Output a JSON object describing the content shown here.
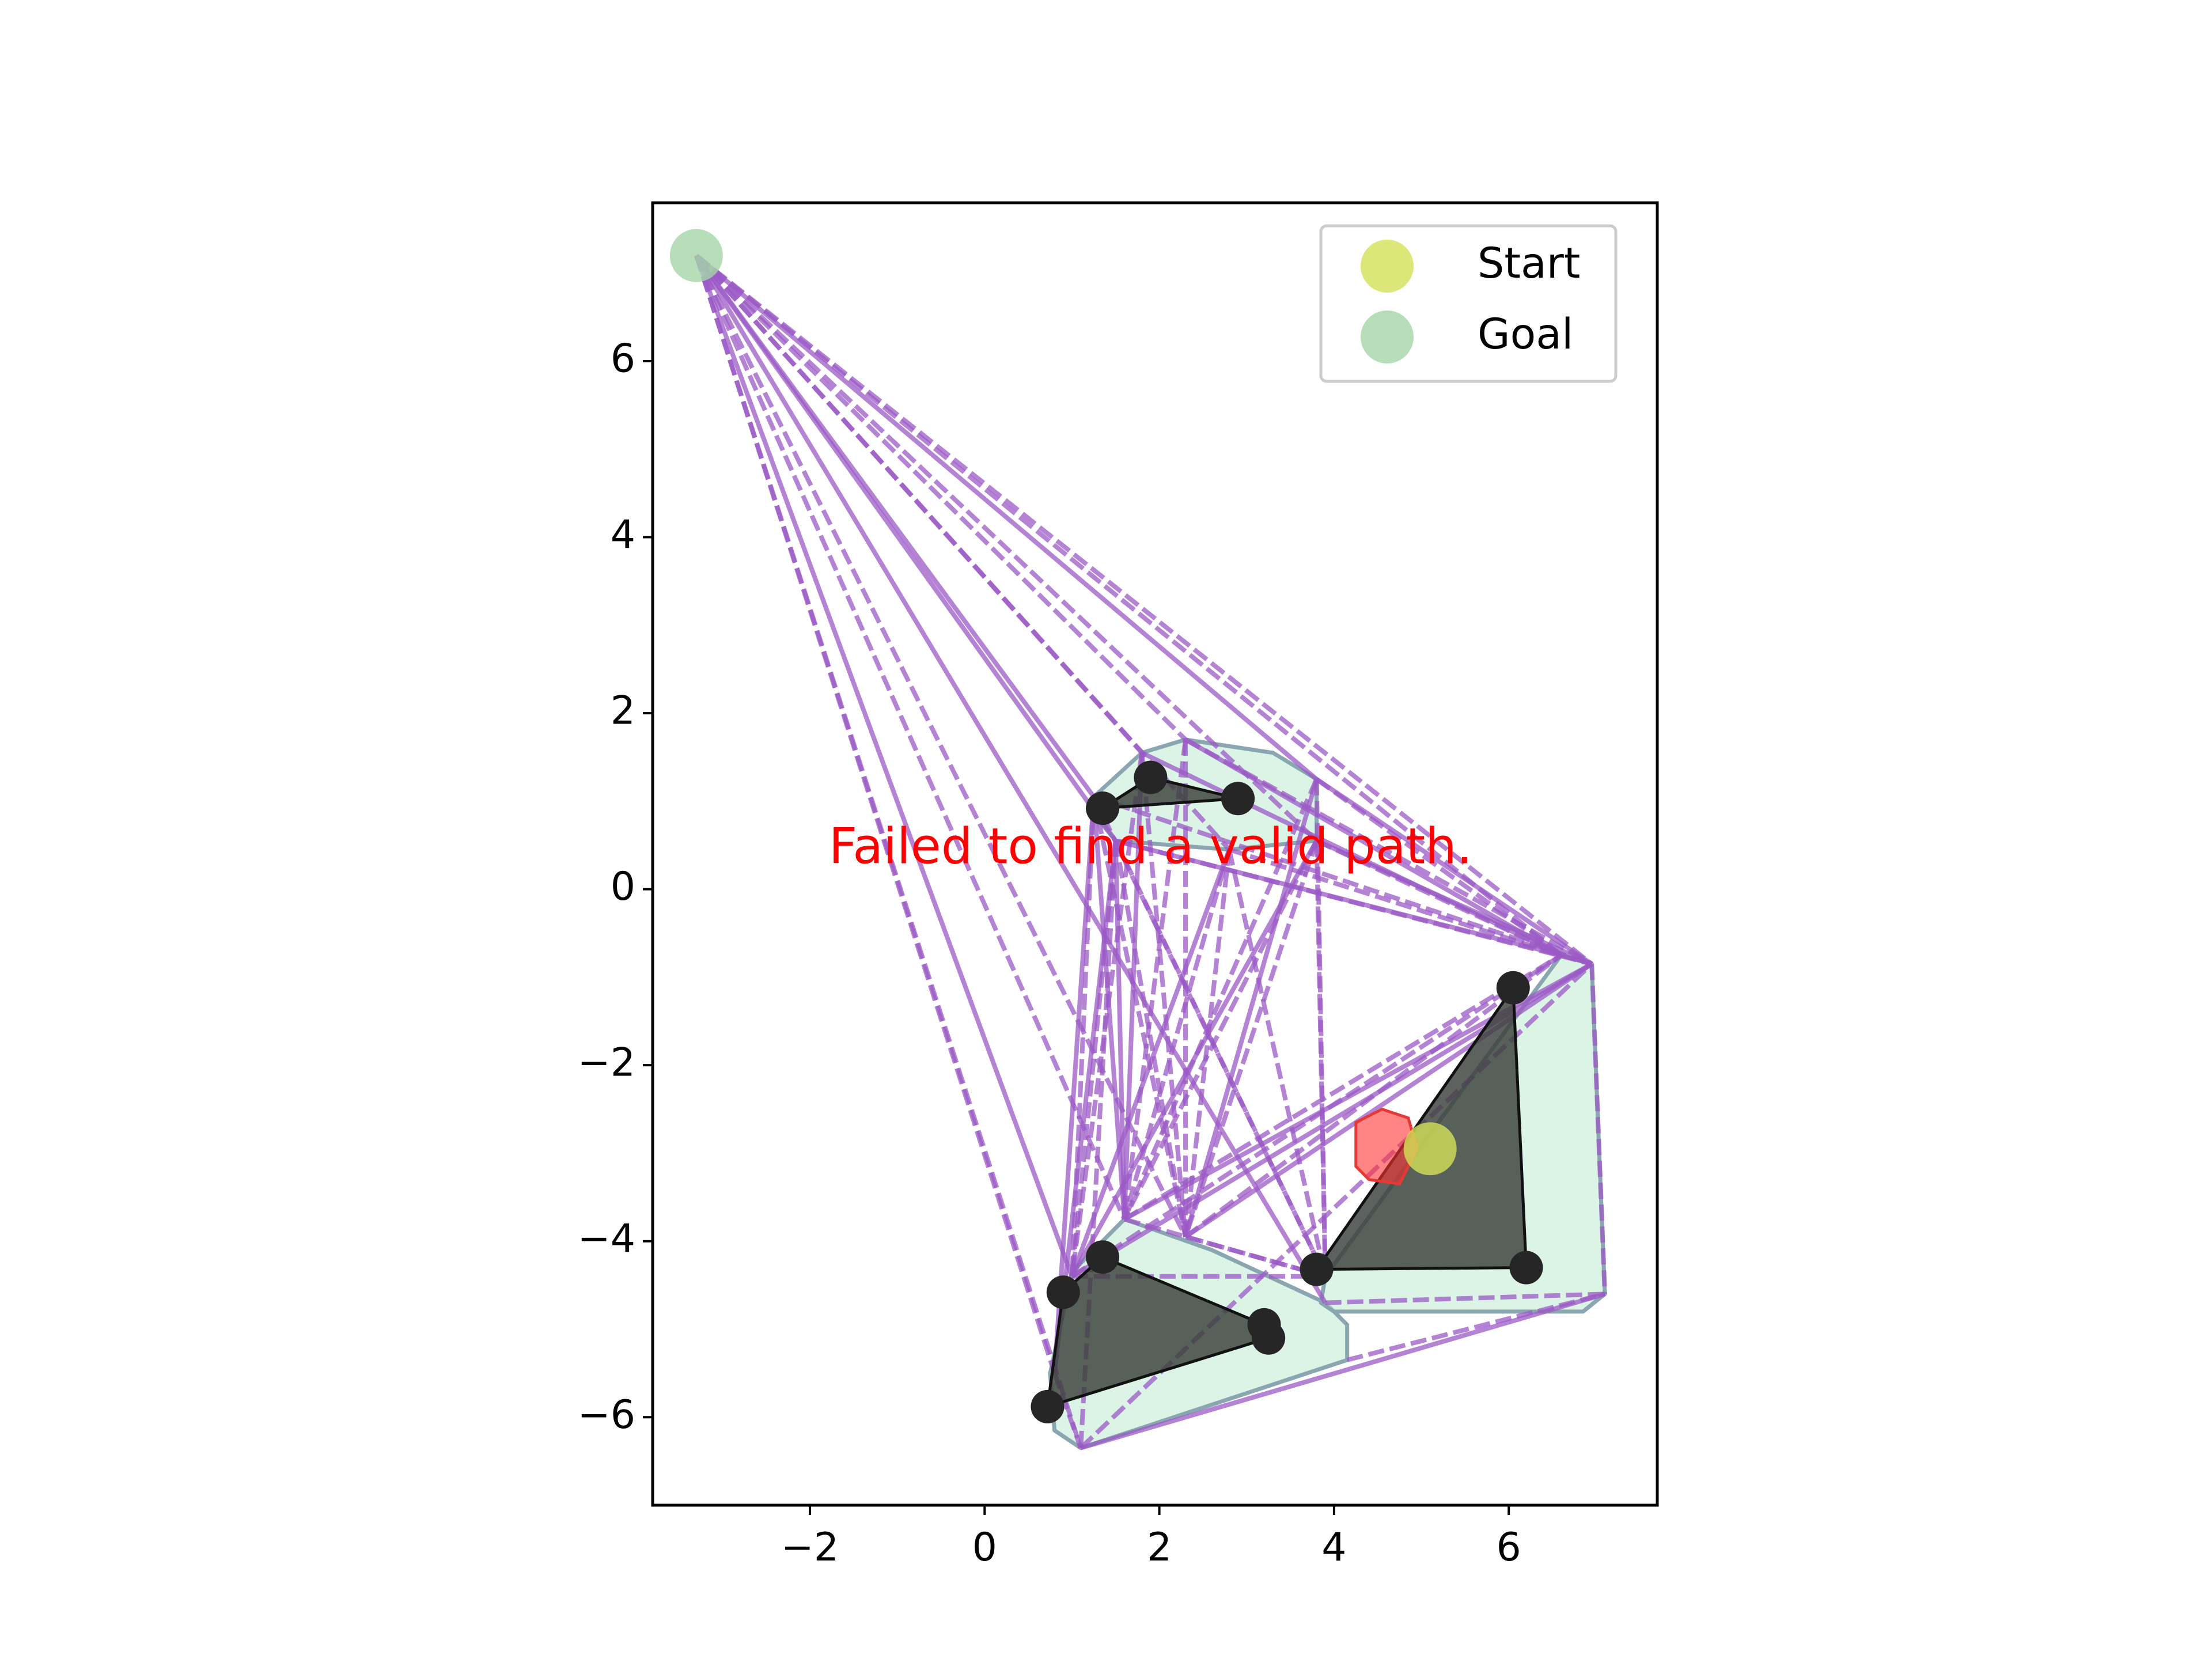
{
  "chart_data": {
    "type": "scatter",
    "title": "",
    "xlabel": "",
    "ylabel": "",
    "xlim": [
      -3.8,
      7.7
    ],
    "ylim": [
      -7.0,
      7.8
    ],
    "aspect": "equal",
    "grid": false,
    "x_ticks": [
      -2,
      0,
      2,
      4,
      6
    ],
    "x_tick_labels": [
      "−2",
      "0",
      "2",
      "4",
      "6"
    ],
    "y_ticks": [
      -6,
      -4,
      -2,
      0,
      2,
      4,
      6
    ],
    "y_tick_labels": [
      "−6",
      "−4",
      "−2",
      "0",
      "2",
      "4",
      "6"
    ],
    "legend": {
      "placement": "top-right",
      "entries": [
        {
          "label": "Start",
          "color": "#d4e157"
        },
        {
          "label": "Goal",
          "color": "#a5d6a7"
        }
      ]
    },
    "annotation": {
      "text": "Failed to find a valid path.",
      "x": 1.9,
      "y": 0.45,
      "color": "#ff0000"
    },
    "start": {
      "x": 5.1,
      "y": -2.95,
      "color": "#d4e157"
    },
    "goal": {
      "x": -3.3,
      "y": 7.2,
      "color": "#a5d6a7"
    },
    "robot": {
      "color": "#ff3333",
      "vertices": [
        [
          4.25,
          -2.65
        ],
        [
          4.55,
          -2.5
        ],
        [
          4.85,
          -2.6
        ],
        [
          4.95,
          -2.95
        ],
        [
          4.75,
          -3.35
        ],
        [
          4.4,
          -3.3
        ],
        [
          4.25,
          -3.15
        ]
      ]
    },
    "obstacles": [
      {
        "vertices": [
          [
            1.35,
            0.92
          ],
          [
            1.9,
            1.27
          ],
          [
            2.9,
            1.03
          ]
        ]
      },
      {
        "vertices": [
          [
            0.9,
            -4.58
          ],
          [
            1.35,
            -4.18
          ],
          [
            3.2,
            -4.95
          ],
          [
            3.25,
            -5.1
          ],
          [
            0.72,
            -5.88
          ]
        ]
      },
      {
        "vertices": [
          [
            3.8,
            -4.32
          ],
          [
            6.05,
            -1.12
          ],
          [
            6.2,
            -4.3
          ]
        ]
      }
    ],
    "inflated_regions": [
      {
        "vertices": [
          [
            1.25,
            1.05
          ],
          [
            1.8,
            1.55
          ],
          [
            2.3,
            1.7
          ],
          [
            3.3,
            1.55
          ],
          [
            3.8,
            1.25
          ],
          [
            3.8,
            0.55
          ],
          [
            2.8,
            0.45
          ],
          [
            1.5,
            0.55
          ],
          [
            1.25,
            0.85
          ]
        ]
      },
      {
        "vertices": [
          [
            1.6,
            -3.75
          ],
          [
            2.6,
            -4.1
          ],
          [
            3.9,
            -4.7
          ],
          [
            4.15,
            -4.95
          ],
          [
            4.15,
            -5.35
          ],
          [
            1.1,
            -6.35
          ],
          [
            0.8,
            -6.15
          ],
          [
            0.75,
            -5.5
          ],
          [
            1.0,
            -4.35
          ]
        ]
      },
      {
        "vertices": [
          [
            6.6,
            -0.75
          ],
          [
            6.95,
            -0.85
          ],
          [
            7.1,
            -4.6
          ],
          [
            6.85,
            -4.8
          ],
          [
            4.0,
            -4.8
          ],
          [
            3.85,
            -4.7
          ],
          [
            3.9,
            -4.4
          ]
        ]
      }
    ],
    "vertex_nodes": [
      {
        "x": 1.35,
        "y": 0.92
      },
      {
        "x": 1.9,
        "y": 1.27
      },
      {
        "x": 2.9,
        "y": 1.03
      },
      {
        "x": 0.9,
        "y": -4.58
      },
      {
        "x": 1.35,
        "y": -4.18
      },
      {
        "x": 3.2,
        "y": -4.95
      },
      {
        "x": 3.25,
        "y": -5.1
      },
      {
        "x": 0.72,
        "y": -5.88
      },
      {
        "x": 3.8,
        "y": -4.32
      },
      {
        "x": 6.05,
        "y": -1.12
      },
      {
        "x": 6.2,
        "y": -4.3
      }
    ],
    "graph_nodes": [
      [
        -3.3,
        7.2
      ],
      [
        1.25,
        1.05
      ],
      [
        1.8,
        1.55
      ],
      [
        2.3,
        1.7
      ],
      [
        3.8,
        1.25
      ],
      [
        3.8,
        0.55
      ],
      [
        2.8,
        0.45
      ],
      [
        1.5,
        0.55
      ],
      [
        1.6,
        -3.75
      ],
      [
        2.3,
        -3.95
      ],
      [
        3.9,
        -4.7
      ],
      [
        4.15,
        -5.35
      ],
      [
        1.1,
        -6.35
      ],
      [
        0.8,
        -5.5
      ],
      [
        1.0,
        -4.4
      ],
      [
        6.6,
        -0.75
      ],
      [
        6.95,
        -0.85
      ],
      [
        7.1,
        -4.6
      ],
      [
        3.9,
        -4.4
      ]
    ],
    "graph_edges": [
      [
        0,
        1
      ],
      [
        0,
        2
      ],
      [
        0,
        3
      ],
      [
        0,
        4
      ],
      [
        0,
        5
      ],
      [
        0,
        6
      ],
      [
        0,
        7
      ],
      [
        0,
        8
      ],
      [
        0,
        9
      ],
      [
        0,
        10
      ],
      [
        0,
        12
      ],
      [
        0,
        13
      ],
      [
        0,
        14
      ],
      [
        0,
        15
      ],
      [
        0,
        16
      ],
      [
        1,
        8
      ],
      [
        1,
        9
      ],
      [
        1,
        14
      ],
      [
        1,
        13
      ],
      [
        1,
        18
      ],
      [
        1,
        16
      ],
      [
        2,
        8
      ],
      [
        2,
        9
      ],
      [
        2,
        14
      ],
      [
        2,
        15
      ],
      [
        3,
        8
      ],
      [
        3,
        9
      ],
      [
        3,
        15
      ],
      [
        3,
        16
      ],
      [
        4,
        15
      ],
      [
        4,
        16
      ],
      [
        4,
        18
      ],
      [
        4,
        8
      ],
      [
        4,
        9
      ],
      [
        5,
        8
      ],
      [
        5,
        9
      ],
      [
        5,
        14
      ],
      [
        5,
        18
      ],
      [
        5,
        15
      ],
      [
        5,
        16
      ],
      [
        6,
        8
      ],
      [
        6,
        9
      ],
      [
        6,
        14
      ],
      [
        6,
        15
      ],
      [
        6,
        18
      ],
      [
        7,
        8
      ],
      [
        7,
        9
      ],
      [
        7,
        14
      ],
      [
        7,
        13
      ],
      [
        7,
        12
      ],
      [
        7,
        18
      ],
      [
        7,
        15
      ],
      [
        7,
        16
      ],
      [
        8,
        15
      ],
      [
        8,
        16
      ],
      [
        8,
        18
      ],
      [
        9,
        15
      ],
      [
        9,
        16
      ],
      [
        9,
        18
      ],
      [
        14,
        15
      ],
      [
        14,
        16
      ],
      [
        14,
        18
      ],
      [
        11,
        17
      ],
      [
        12,
        17
      ],
      [
        12,
        16
      ],
      [
        13,
        12
      ],
      [
        15,
        16
      ],
      [
        16,
        17
      ],
      [
        10,
        17
      ]
    ]
  }
}
